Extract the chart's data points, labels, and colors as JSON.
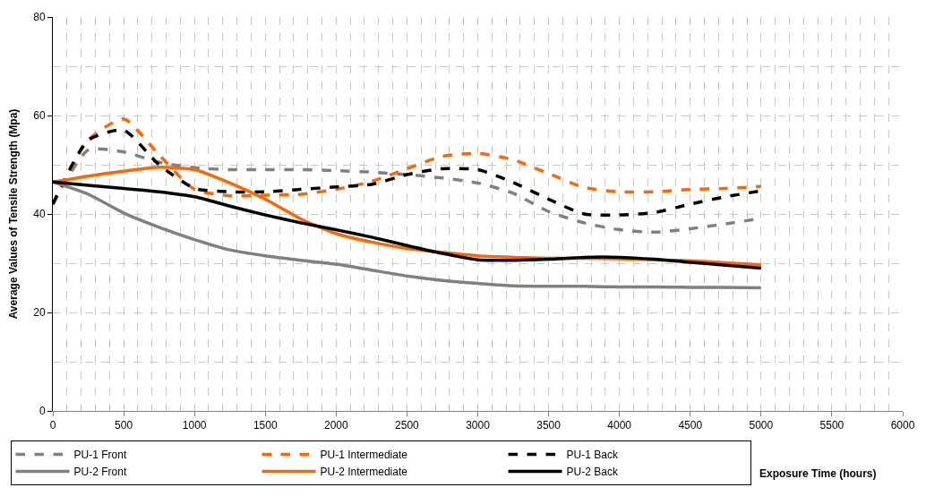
{
  "chart_data": {
    "type": "line",
    "xlabel": "Exposure Time (hours)",
    "ylabel": "Average Values of Tensile Strength (Mpa)",
    "x": [
      0,
      250,
      500,
      750,
      1000,
      1250,
      1500,
      1750,
      2000,
      2250,
      2500,
      2750,
      3000,
      3250,
      3500,
      3750,
      4000,
      4250,
      4500,
      4750,
      5000
    ],
    "xlim": [
      0,
      6000
    ],
    "xticks": [
      0,
      500,
      1000,
      1500,
      2000,
      2500,
      3000,
      3500,
      4000,
      4500,
      5000,
      5500,
      6000
    ],
    "ylim": [
      0,
      80
    ],
    "yticks": [
      0,
      20,
      40,
      60,
      80
    ],
    "grid": true,
    "legend": "bottom left",
    "marker": "none",
    "series": [
      {
        "name": "PU-1 Front",
        "color": "#808080",
        "line_style": "dashed",
        "values": [
          42,
          53,
          52.6,
          50.5,
          49.4,
          49,
          49,
          49,
          48.8,
          48.5,
          48,
          47.3,
          46.3,
          44.2,
          40.5,
          38.2,
          36.8,
          36.3,
          37,
          38,
          39.1
        ]
      },
      {
        "name": "PU-1 Intermediate",
        "color": "#ff6600",
        "line_style": "dashed",
        "values": [
          42,
          55,
          59.3,
          52,
          45,
          43.7,
          43.8,
          44,
          45,
          46.6,
          49.2,
          51.7,
          52.3,
          51,
          48.2,
          45.4,
          44.5,
          44.5,
          45,
          45.2,
          45.6
        ]
      },
      {
        "name": "PU-1 Back",
        "color": "#000000",
        "line_style": "dashed",
        "values": [
          42,
          55,
          57,
          50,
          45.2,
          44.5,
          44.5,
          45,
          45.5,
          46,
          48,
          49.2,
          49,
          46.4,
          43,
          40,
          39.8,
          40.3,
          42,
          43.5,
          44.7
        ]
      },
      {
        "name": "PU-2 Front",
        "color": "#808080",
        "line_style": "solid",
        "values": [
          46.5,
          44,
          40.2,
          37.3,
          34.8,
          32.7,
          31.5,
          30.6,
          29.8,
          28.6,
          27.4,
          26.5,
          25.9,
          25.4,
          25.3,
          25.3,
          25.2,
          25.2,
          25.1,
          25.1,
          25.0
        ]
      },
      {
        "name": "PU-2 Intermediate",
        "color": "#ff6600",
        "line_style": "solid",
        "values": [
          46.5,
          47.7,
          48.7,
          49.5,
          49,
          46.3,
          43,
          39,
          36,
          34.3,
          33,
          32.2,
          31.5,
          31.2,
          31,
          31,
          30.9,
          30.7,
          30.5,
          30.1,
          29.7
        ]
      },
      {
        "name": "PU-2 Back",
        "color": "#000000",
        "line_style": "solid",
        "values": [
          46.5,
          45.8,
          45.2,
          44.5,
          43.5,
          41.6,
          39.8,
          38.2,
          36.8,
          35.3,
          33.6,
          32,
          30.7,
          30.6,
          30.8,
          31.2,
          31.2,
          30.8,
          30.2,
          29.6,
          29
        ]
      }
    ]
  }
}
